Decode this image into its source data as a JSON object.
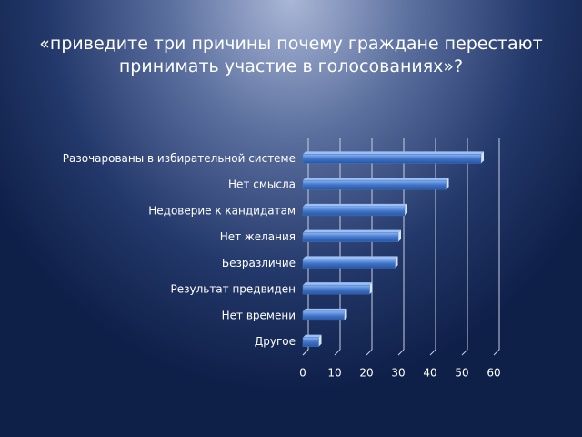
{
  "chart_data": {
    "type": "bar",
    "orientation": "horizontal",
    "title": "«приведите три причины почему граждане перестают принимать участие в голосованиях»?",
    "categories": [
      "Разочарованы в избирательной системе",
      "Нет смысла",
      "Недоверие к кандидатам",
      "Нет желания",
      "Безразличие",
      "Результат предвиден",
      "Нет времени",
      "Другое"
    ],
    "values": [
      56,
      45,
      32,
      30,
      29,
      21,
      13,
      5
    ],
    "color": "#3f74c9",
    "xlim": [
      0,
      60
    ],
    "xticks": [
      0,
      10,
      20,
      30,
      40,
      50,
      60
    ],
    "grid": true
  }
}
